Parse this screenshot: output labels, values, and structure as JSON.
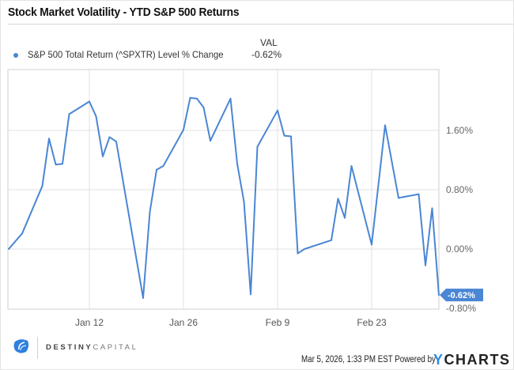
{
  "header": {
    "title": "Stock Market Volatility - YTD S&P 500 Returns"
  },
  "legend": {
    "column_header": "VAL",
    "series_label": "S&P 500 Total Return (^SPXTR) Level % Change",
    "series_value": "-0.62%",
    "series_color": "#4a86d4"
  },
  "chart_data": {
    "type": "line",
    "title": "Stock Market Volatility - YTD S&P 500 Returns",
    "xlabel": "",
    "ylabel": "",
    "x_unit": "days since Dec 31, 2025",
    "x": [
      0,
      2,
      5,
      6,
      7,
      8,
      9,
      12,
      13,
      14,
      15,
      16,
      20,
      21,
      22,
      23,
      26,
      27,
      28,
      29,
      30,
      33,
      34,
      35,
      36,
      37,
      40,
      41,
      42,
      43,
      44,
      48,
      49,
      50,
      51,
      54,
      56,
      58,
      61,
      62,
      63,
      64
    ],
    "series": [
      {
        "name": "S&P 500 Total Return (^SPXTR) Level % Change",
        "color": "#4a86d4",
        "values": [
          0.0,
          0.21,
          0.85,
          1.49,
          1.14,
          1.15,
          1.82,
          1.99,
          1.79,
          1.25,
          1.51,
          1.45,
          -0.66,
          0.5,
          1.07,
          1.12,
          1.61,
          2.04,
          2.03,
          1.91,
          1.46,
          2.03,
          1.15,
          0.64,
          -0.61,
          1.38,
          1.87,
          1.53,
          1.52,
          -0.06,
          0.0,
          0.12,
          0.68,
          0.42,
          1.12,
          0.06,
          1.67,
          0.69,
          0.74,
          -0.22,
          0.55,
          -0.62
        ]
      }
    ],
    "x_ticks": [
      {
        "label": "Jan 12",
        "day": 12
      },
      {
        "label": "Jan 26",
        "day": 26
      },
      {
        "label": "Feb 9",
        "day": 40
      },
      {
        "label": "Feb 23",
        "day": 54
      }
    ],
    "y_ticks": [
      {
        "label": "1.60%",
        "value": 1.6
      },
      {
        "label": "0.80%",
        "value": 0.8
      },
      {
        "label": "0.00%",
        "value": 0.0
      },
      {
        "label": "-0.80%",
        "value": -0.8
      }
    ],
    "ylim": [
      -0.8,
      2.43
    ],
    "xlim": [
      -0.1,
      64
    ],
    "grid": true,
    "last_value_label": "-0.62%",
    "legend_position": "top-left"
  },
  "footer": {
    "brand_bold": "DESTINY",
    "brand_light": "CAPITAL",
    "timestamp": "Mar 5, 2026, 1:33 PM EST",
    "powered_by": "Powered by",
    "ycharts_y": "Y",
    "ycharts_rest": "CHARTS"
  }
}
